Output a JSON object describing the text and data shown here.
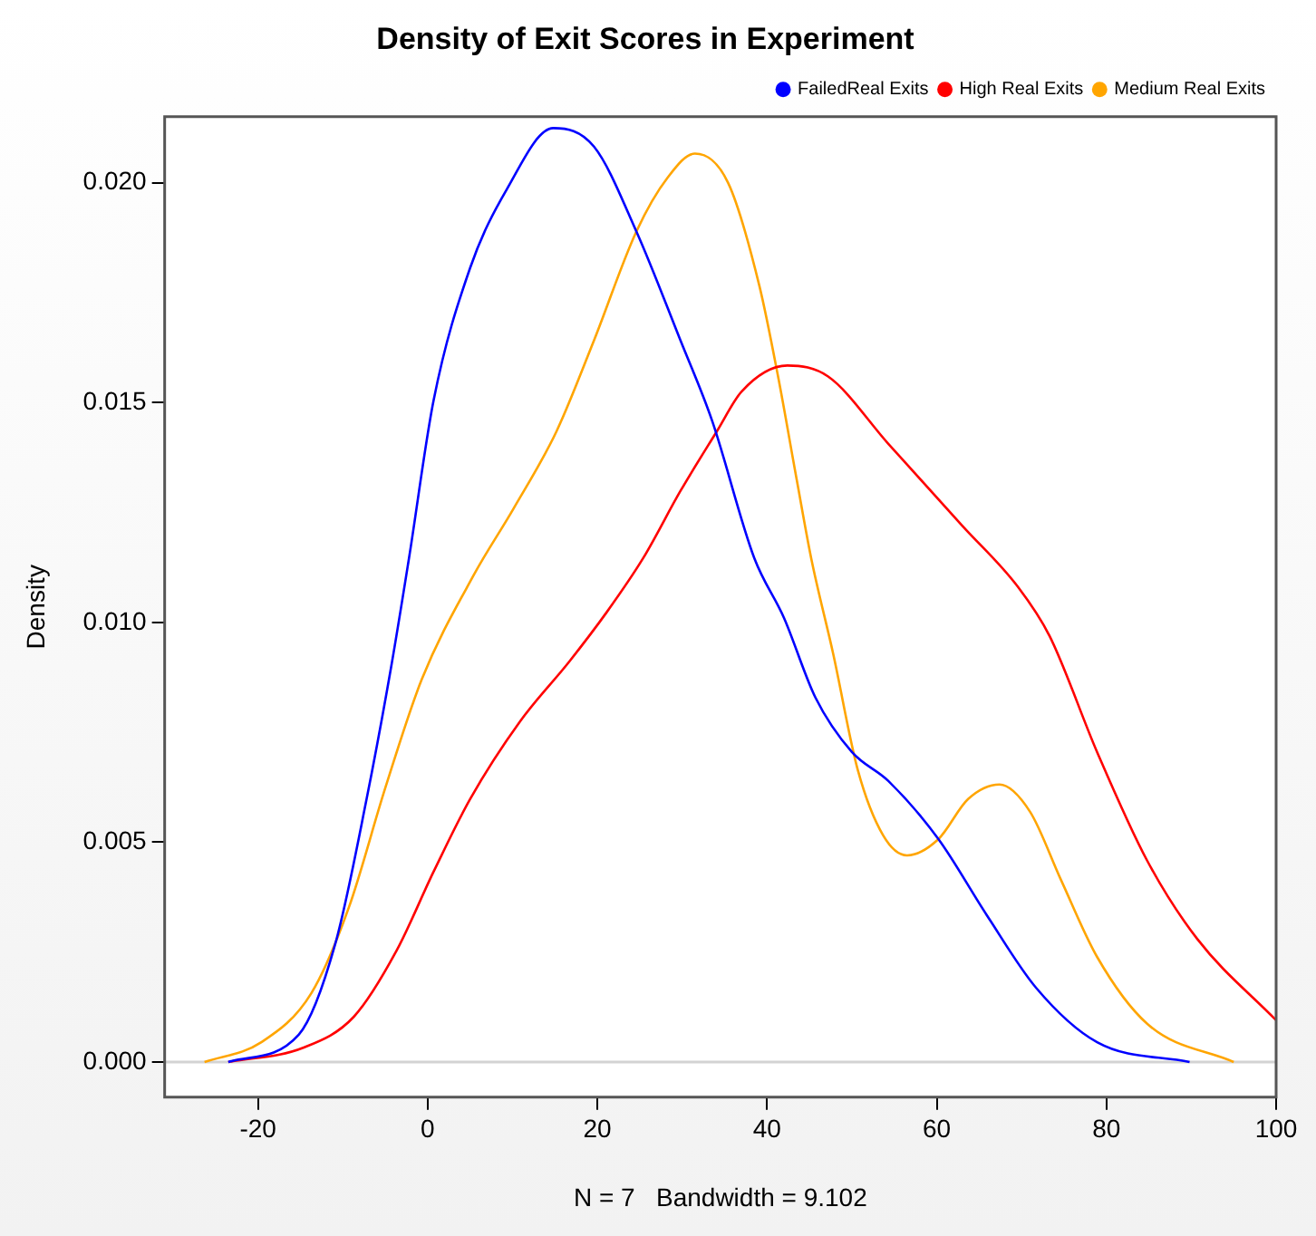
{
  "chart_data": {
    "type": "line",
    "title": "Density of Exit Scores in Experiment",
    "xlabel": "N = 7   Bandwidth = 9.102",
    "ylabel": "Density",
    "xlim": [
      -31,
      100
    ],
    "xticks": [
      -20,
      0,
      20,
      40,
      60,
      80,
      100
    ],
    "ylim": [
      -0.0008,
      0.0215
    ],
    "yticks": [
      {
        "value": 0,
        "label": "0.000"
      },
      {
        "value": 0.005,
        "label": "0.005"
      },
      {
        "value": 0.01,
        "label": "0.010"
      },
      {
        "value": 0.015,
        "label": "0.015"
      },
      {
        "value": 0.02,
        "label": "0.020"
      }
    ],
    "legend": "top right",
    "marker": "none",
    "line_style": "solid",
    "ref_lines": [
      {
        "axis": "y",
        "value": 0,
        "color": "#d3d3d3"
      }
    ],
    "series": [
      {
        "name": "FailedReal Exits",
        "color": "#0000ff",
        "x": [
          -23.5,
          -15.2,
          -10.9,
          -7.2,
          -4.3,
          -2.2,
          0.7,
          5,
          9.3,
          14.8,
          19.6,
          24.6,
          29.8,
          33.5,
          38.5,
          42,
          45.7,
          50,
          54.3,
          60.2,
          65.9,
          71.7,
          78.9,
          89.8
        ],
        "values": [
          0,
          0.00062,
          0.00268,
          0.00598,
          0.00899,
          0.01146,
          0.01505,
          0.01806,
          0.01984,
          0.02124,
          0.02082,
          0.01889,
          0.01641,
          0.0146,
          0.01146,
          0.0101,
          0.00829,
          0.00705,
          0.00639,
          0.00507,
          0.00334,
          0.00169,
          0.00045,
          0
        ]
      },
      {
        "name": "High Real Exits",
        "color": "#ff0000",
        "x": [
          -23.5,
          -14.6,
          -8.7,
          -3.7,
          0.7,
          5,
          10.9,
          16.7,
          21.1,
          25.4,
          29.8,
          34.1,
          37,
          42.4,
          47.2,
          54.3,
          63,
          69.6,
          73.3,
          78.9,
          84.8,
          90.7,
          100
        ],
        "values": [
          0,
          0.00033,
          0.00103,
          0.00252,
          0.00433,
          0.00598,
          0.00775,
          0.00911,
          0.01023,
          0.01146,
          0.01299,
          0.01435,
          0.01525,
          0.01584,
          0.01559,
          0.01406,
          0.0122,
          0.0108,
          0.00969,
          0.00705,
          0.00458,
          0.0028,
          0.00095
        ]
      },
      {
        "name": "Medium Real Exits",
        "color": "#ffa500",
        "x": [
          -26.3,
          -19.6,
          -13.7,
          -9.3,
          -5,
          -0.7,
          5.5,
          10.1,
          15.2,
          19.6,
          24.6,
          28.3,
          31.5,
          35.4,
          39.1,
          41.3,
          43.5,
          45.2,
          47.8,
          50.7,
          53.7,
          56.5,
          60.2,
          63.7,
          67.4,
          71,
          74.6,
          78.9,
          84.8,
          95
        ],
        "values": [
          0,
          0.00045,
          0.00157,
          0.00351,
          0.00623,
          0.0087,
          0.0111,
          0.01258,
          0.01435,
          0.01641,
          0.01889,
          0.02012,
          0.02066,
          0.02,
          0.01765,
          0.01559,
          0.01324,
          0.01146,
          0.00928,
          0.00664,
          0.00515,
          0.0047,
          0.00507,
          0.00598,
          0.00631,
          0.00569,
          0.00416,
          0.00239,
          0.00087,
          0
        ]
      }
    ]
  }
}
